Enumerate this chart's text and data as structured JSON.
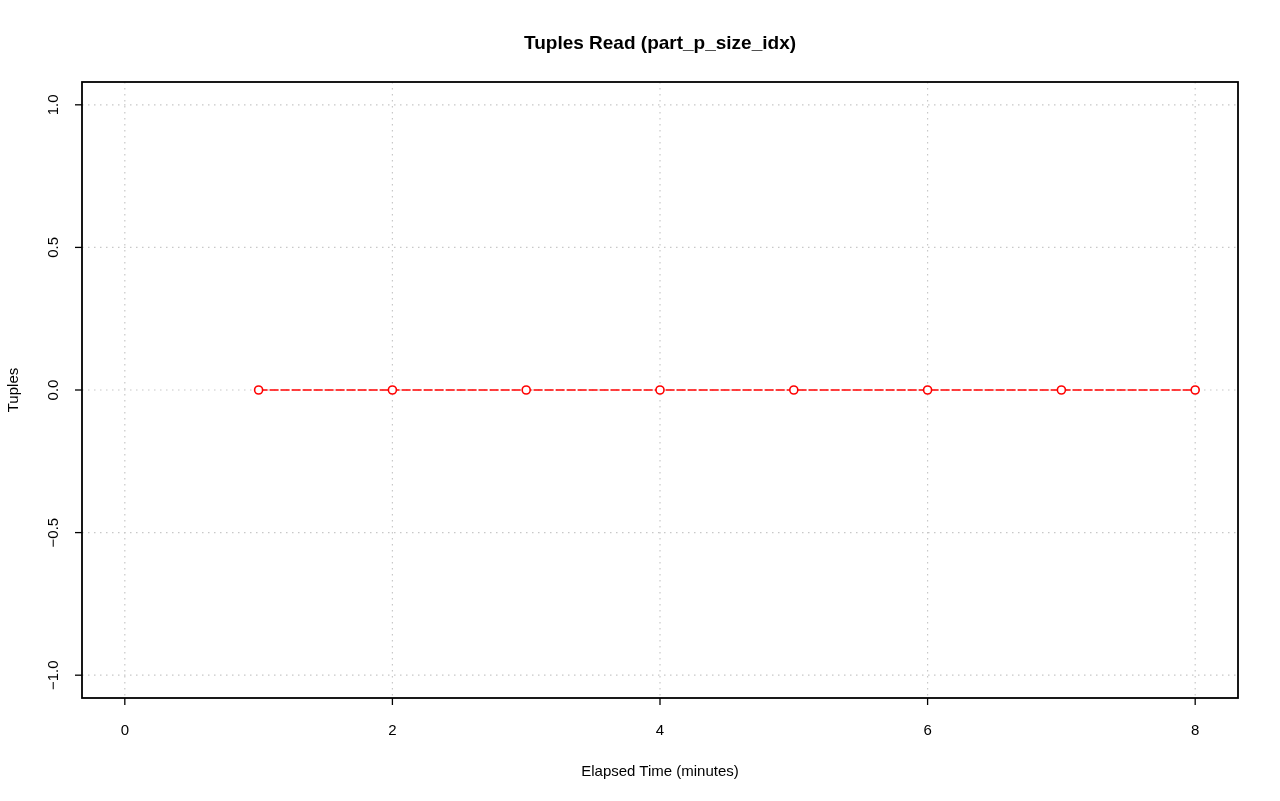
{
  "chart_data": {
    "type": "line",
    "title": "Tuples Read (part_p_size_idx)",
    "xlabel": "Elapsed Time (minutes)",
    "ylabel": "Tuples",
    "x": [
      1,
      2,
      3,
      4,
      5,
      6,
      7,
      8
    ],
    "series": [
      {
        "color": "#ff0000",
        "values": [
          0,
          0,
          0,
          0,
          0,
          0,
          0,
          0
        ]
      }
    ],
    "xlim": [
      -0.32,
      8.32
    ],
    "xticks": [
      0,
      2,
      4,
      6,
      8
    ],
    "ylim": [
      -1.08,
      1.08
    ],
    "yticks": [
      {
        "value": -1,
        "label": "−1.0"
      },
      {
        "value": -0.5,
        "label": "−0.5"
      },
      {
        "value": 0,
        "label": "0.0"
      },
      {
        "value": 0.5,
        "label": "0.5"
      },
      {
        "value": 1,
        "label": "1.0"
      }
    ],
    "grid": true,
    "marker": "circle",
    "line_style": "dashed"
  }
}
